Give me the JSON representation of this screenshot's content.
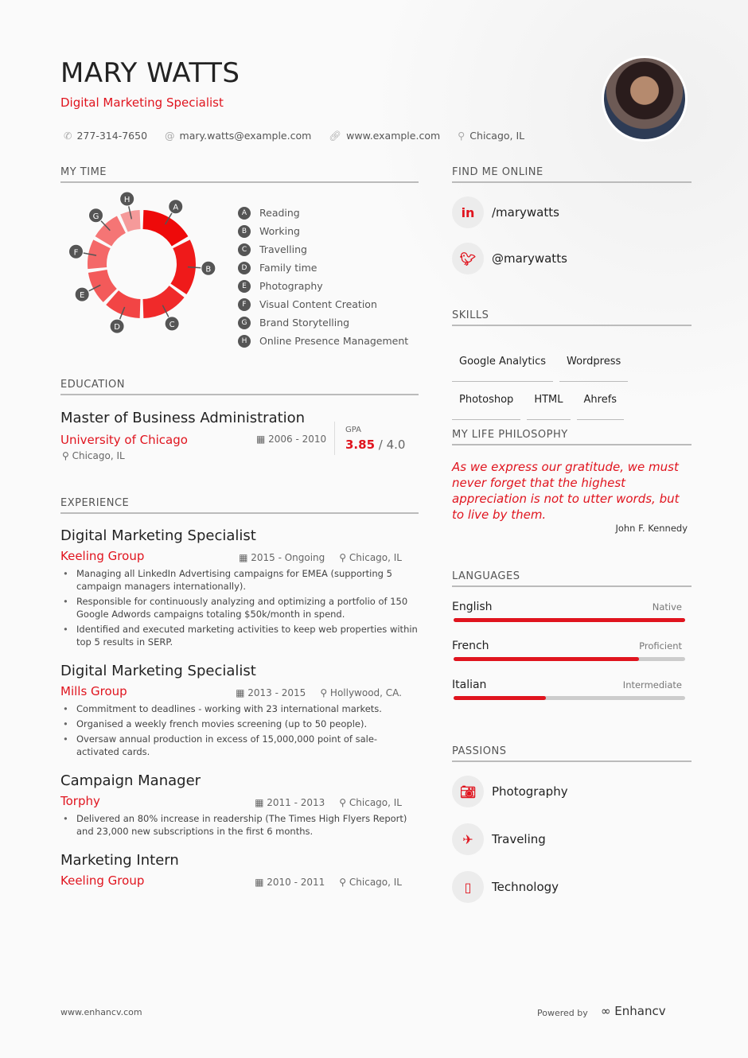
{
  "header": {
    "name": "MARY WATTS",
    "title": "Digital Marketing Specialist",
    "phone": "277-314-7650",
    "email": "mary.watts@example.com",
    "website": "www.example.com",
    "location": "Chicago, IL"
  },
  "my_time": {
    "heading": "MY TIME",
    "chart_data": {
      "type": "pie",
      "donut": true,
      "categories": [
        "A",
        "B",
        "C",
        "D",
        "E",
        "F",
        "G",
        "H"
      ],
      "labels": [
        "Reading",
        "Working",
        "Travelling",
        "Family time",
        "Photography",
        "Visual Content Creation",
        "Brand Storytelling",
        "Online Presence Management"
      ],
      "values": [
        17,
        18,
        15,
        12,
        11,
        10,
        10,
        7
      ],
      "colors": [
        "#ee0a0a",
        "#ef1a1a",
        "#f02a2a",
        "#f24545",
        "#f35a5a",
        "#f46868",
        "#f57575",
        "#f59a9a"
      ]
    }
  },
  "education": {
    "heading": "EDUCATION",
    "degree": "Master of Business Administration",
    "school": "University of Chicago",
    "dates": "2006 - 2010",
    "location": "Chicago, IL",
    "gpa_label": "GPA",
    "gpa": "3.85",
    "gpa_max": "/ 4.0"
  },
  "experience": {
    "heading": "EXPERIENCE",
    "items": [
      {
        "role": "Digital Marketing Specialist",
        "company": "Keeling Group",
        "dates": "2015 - Ongoing",
        "location": "Chicago, IL",
        "bullets": [
          "Managing all LinkedIn Advertising campaigns for EMEA (supporting 5 campaign managers internationally).",
          "Responsible for continuously analyzing and optimizing a portfolio of 150 Google Adwords campaigns totaling $50k/month in spend.",
          "Identified and executed marketing activities to keep web properties within top 5 results in SERP."
        ]
      },
      {
        "role": "Digital Marketing Specialist",
        "company": "Mills Group",
        "dates": "2013 - 2015",
        "location": "Hollywood, CA.",
        "bullets": [
          "Commitment to deadlines - working with 23 international markets.",
          "Organised a weekly french movies screening (up to 50 people).",
          "Oversaw annual production in excess of 15,000,000 point of sale-activated cards."
        ]
      },
      {
        "role": "Campaign Manager",
        "company": "Torphy",
        "dates": "2011 - 2013",
        "location": "Chicago, IL",
        "bullets": [
          "Delivered an 80% increase in readership (The Times High Flyers Report) and 23,000 new subscriptions in the first 6 months."
        ]
      },
      {
        "role": "Marketing Intern",
        "company": "Keeling Group",
        "dates": "2010 - 2011",
        "location": "Chicago, IL",
        "bullets": []
      }
    ]
  },
  "online": {
    "heading": "FIND ME ONLINE",
    "linkedin": "/marywatts",
    "twitter": "@marywatts"
  },
  "skills": {
    "heading": "SKILLS",
    "items": [
      "Google Analytics",
      "Wordpress",
      "Photoshop",
      "HTML",
      "Ahrefs"
    ]
  },
  "philosophy": {
    "heading": "MY LIFE PHILOSOPHY",
    "quote": "As we express our gratitude, we must never forget that the highest appreciation is not to utter words, but to live by them.",
    "author": "John F. Kennedy"
  },
  "languages": {
    "heading": "LANGUAGES",
    "items": [
      {
        "name": "English",
        "level": "Native",
        "fill": 100
      },
      {
        "name": "French",
        "level": "Proficient",
        "fill": 80
      },
      {
        "name": "Italian",
        "level": "Intermediate",
        "fill": 40
      }
    ]
  },
  "passions": {
    "heading": "PASSIONS",
    "items": [
      "Photography",
      "Traveling",
      "Technology"
    ]
  },
  "footer": {
    "site": "www.enhancv.com",
    "powered": "Powered by",
    "brand": "Enhancv"
  },
  "accent": "#e0141e"
}
